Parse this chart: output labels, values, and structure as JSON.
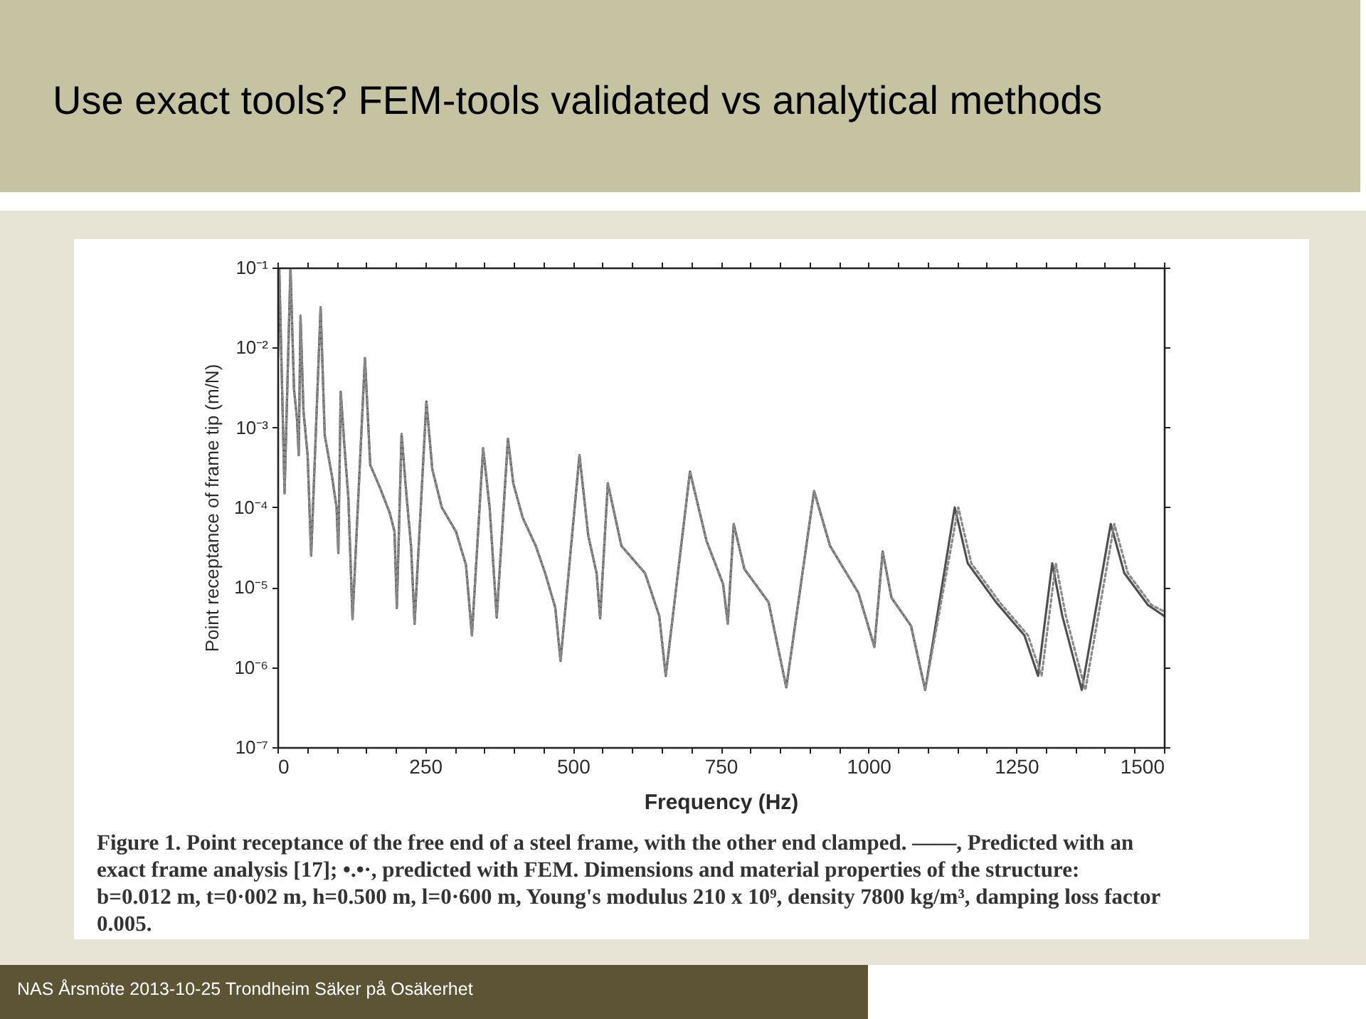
{
  "chart_data": {
    "type": "line",
    "title": "Use exact tools? FEM-tools validated vs analytical methods",
    "xlabel": "Frequency (Hz)",
    "ylabel": "Point receptance of frame tip (m/N)",
    "annotations": [
      "Figure 1. Point receptance of the free end of a steel frame, with the other end clamped. ——, Predicted with an exact frame analysis [17]; •.•·, predicted with FEM. Dimensions and material properties of the structure: b=0.012 m, t=0·002 m, h=0.500 m, l=0·600 m, Young's modulus 210 x 10⁹, density 7800 kg/m³, damping loss factor 0.005.",
      "NAS Årsmöte 2013-10-25 Trondheim Säker på Osäkerhet"
    ],
    "xlim": [
      0,
      1500
    ],
    "ylim": [
      1e-07,
      0.1
    ],
    "log": "y",
    "xticks": [
      0,
      {
        "value": 50,
        "label": null
      },
      {
        "value": 100,
        "label": null
      },
      {
        "value": 150,
        "label": null
      },
      {
        "value": 200,
        "label": null
      },
      250,
      {
        "value": 300,
        "label": null
      },
      {
        "value": 350,
        "label": null
      },
      {
        "value": 400,
        "label": null
      },
      {
        "value": 450,
        "label": null
      },
      500,
      {
        "value": 550,
        "label": null
      },
      {
        "value": 600,
        "label": null
      },
      {
        "value": 650,
        "label": null
      },
      {
        "value": 700,
        "label": null
      },
      750,
      {
        "value": 800,
        "label": null
      },
      {
        "value": 850,
        "label": null
      },
      {
        "value": 900,
        "label": null
      },
      {
        "value": 950,
        "label": null
      },
      1000,
      {
        "value": 1050,
        "label": null
      },
      {
        "value": 1100,
        "label": null
      },
      {
        "value": 1150,
        "label": null
      },
      {
        "value": 1200,
        "label": null
      },
      1250,
      {
        "value": 1300,
        "label": null
      },
      {
        "value": 1350,
        "label": null
      },
      {
        "value": 1400,
        "label": null
      },
      {
        "value": 1450,
        "label": null
      },
      1500
    ],
    "yticks": [
      {
        "value": 1e-07,
        "label": "10⁻⁷"
      },
      {
        "value": 1e-06,
        "label": "10⁻⁶"
      },
      {
        "value": 1e-05,
        "label": "10⁻⁵"
      },
      {
        "value": 0.0001,
        "label": "10⁻⁴"
      },
      {
        "value": 0.001,
        "label": "10⁻³"
      },
      {
        "value": 0.01,
        "label": "10⁻²"
      },
      {
        "value": 0.1,
        "label": "10⁻¹"
      }
    ],
    "series": [
      {
        "color": "#505050",
        "line_style": "solid",
        "x": [
          0,
          3,
          12,
          22,
          28,
          33,
          36,
          39,
          44,
          51,
          57,
          73,
          80,
          92,
          100,
          103,
          107,
          113,
          120,
          127,
          148,
          157,
          173,
          190,
          198,
          202,
          210,
          218,
          226,
          232,
          252,
          262,
          278,
          302,
          319,
          329,
          348,
          359,
          371,
          390,
          399,
          415,
          437,
          453,
          470,
          479,
          511,
          526,
          540,
          546,
          559,
          582,
          622,
          646,
          657,
          698,
          726,
          754,
          762,
          772,
          790,
          831,
          861,
          908,
          935,
          983,
          1010,
          1024,
          1039,
          1072,
          1096,
          1146,
          1168,
          1216,
          1264,
          1287,
          1311,
          1328,
          1361,
          1410,
          1433,
          1473,
          1500
        ],
        "values": [
          0.004,
          0.1,
          0.00015,
          0.1,
          0.003,
          0.0013,
          0.00045,
          0.025,
          0.0016,
          0.00045,
          2.5e-05,
          0.032,
          0.0008,
          0.00025,
          0.0001,
          2.7e-05,
          0.0028,
          0.00063,
          0.00013,
          4e-06,
          0.0074,
          0.00034,
          0.00018,
          8.5e-05,
          5e-05,
          5.5e-06,
          0.00083,
          0.00015,
          3.3e-05,
          3.5e-06,
          0.0021,
          0.0003,
          0.0001,
          5e-05,
          1.9e-05,
          2.5e-06,
          0.00055,
          0.0001,
          4.2e-06,
          0.00072,
          0.0002,
          7.4e-05,
          3.3e-05,
          1.5e-05,
          5.6e-06,
          1.2e-06,
          0.00045,
          4.4e-05,
          1.5e-05,
          4.1e-06,
          0.0002,
          3.3e-05,
          1.5e-05,
          4.4e-06,
          7.8e-07,
          0.00028,
          3.8e-05,
          1.1e-05,
          3.5e-06,
          6.2e-05,
          1.7e-05,
          6.5e-06,
          5.6e-07,
          0.00016,
          3.3e-05,
          8.5e-06,
          1.8e-06,
          2.8e-05,
          7.4e-06,
          3.3e-06,
          5.2e-07,
          0.0001,
          2e-05,
          6.5e-06,
          2.5e-06,
          7.8e-07,
          2e-05,
          4.4e-06,
          5.2e-07,
          6.2e-05,
          1.5e-05,
          6e-06,
          4.4e-06
        ]
      },
      {
        "color": "#8a8a8a",
        "line_style": "dotted",
        "x": [
          0,
          3,
          12,
          22,
          28,
          33,
          36,
          39,
          44,
          51,
          57,
          73,
          80,
          92,
          100,
          103,
          107,
          113,
          120,
          127,
          148,
          157,
          173,
          190,
          198,
          202,
          210,
          218,
          226,
          232,
          252,
          262,
          278,
          302,
          319,
          329,
          348,
          359,
          371,
          390,
          399,
          415,
          437,
          453,
          470,
          479,
          511,
          526,
          540,
          546,
          559,
          582,
          622,
          646,
          657,
          698,
          726,
          754,
          762,
          772,
          790,
          831,
          861,
          908,
          935,
          983,
          1010,
          1024,
          1039,
          1072,
          1096,
          1152,
          1174,
          1222,
          1270,
          1293,
          1317,
          1334,
          1367,
          1416,
          1439,
          1479,
          1500
        ],
        "values": [
          0.004,
          0.1,
          0.00015,
          0.1,
          0.003,
          0.0013,
          0.00045,
          0.025,
          0.0016,
          0.00045,
          2.5e-05,
          0.032,
          0.0008,
          0.00025,
          0.0001,
          2.7e-05,
          0.0028,
          0.00063,
          0.00013,
          4e-06,
          0.0074,
          0.00034,
          0.00018,
          8.5e-05,
          5e-05,
          5.5e-06,
          0.00083,
          0.00015,
          3.3e-05,
          3.5e-06,
          0.0021,
          0.0003,
          0.0001,
          5e-05,
          1.9e-05,
          2.5e-06,
          0.00055,
          0.0001,
          4.2e-06,
          0.00072,
          0.0002,
          7.4e-05,
          3.3e-05,
          1.5e-05,
          5.6e-06,
          1.2e-06,
          0.00045,
          4.4e-05,
          1.5e-05,
          4.1e-06,
          0.0002,
          3.3e-05,
          1.5e-05,
          4.4e-06,
          7.8e-07,
          0.00028,
          3.8e-05,
          1.1e-05,
          3.5e-06,
          6.2e-05,
          1.7e-05,
          6.5e-06,
          5.6e-07,
          0.00016,
          3.3e-05,
          8.5e-06,
          1.8e-06,
          2.8e-05,
          7.4e-06,
          3.3e-06,
          5.2e-07,
          0.0001,
          2e-05,
          6.5e-06,
          2.5e-06,
          7.8e-07,
          2e-05,
          4.4e-06,
          5.2e-07,
          6.2e-05,
          1.5e-05,
          6e-06,
          5e-06
        ]
      }
    ]
  }
}
